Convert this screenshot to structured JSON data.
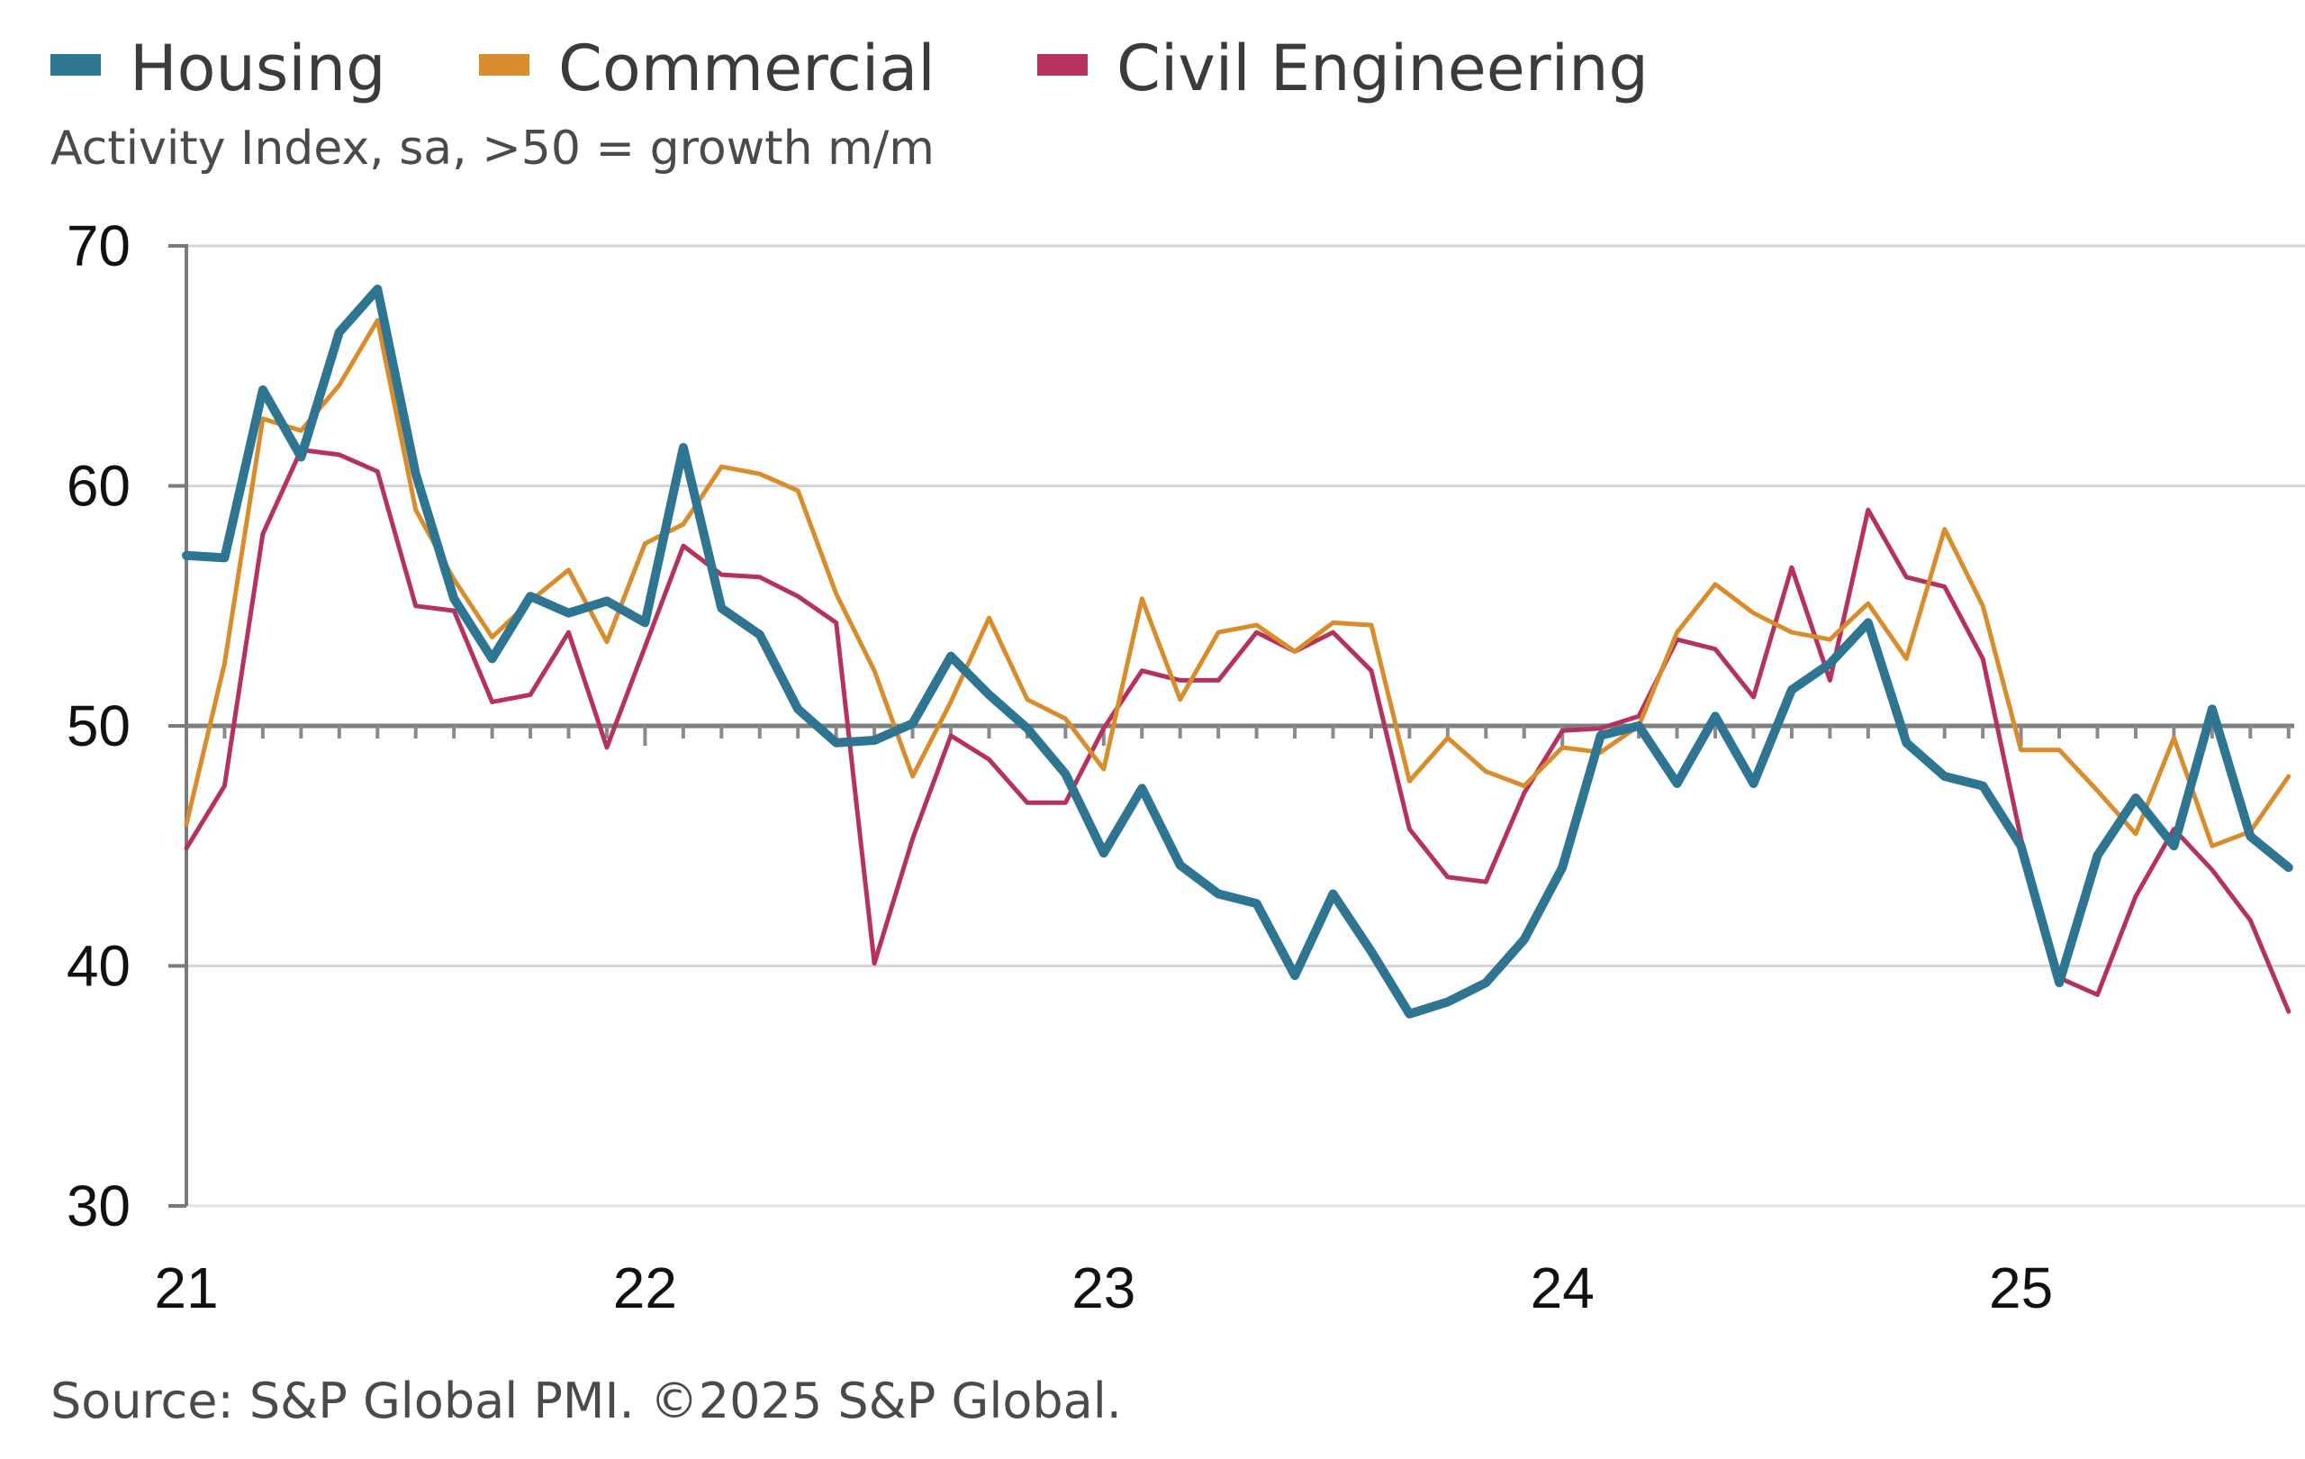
{
  "chart_data": {
    "type": "line",
    "title": "",
    "subtitle": "Activity Index, sa, >50 = growth m/m",
    "source": "Source: S&P Global PMI. ©2025 S&P Global.",
    "xlabel": "",
    "ylabel": "",
    "x_start": "2021-01",
    "frequency": "monthly",
    "x_tick_labels": [
      "21",
      "22",
      "23",
      "24",
      "25"
    ],
    "y_tick_labels": [
      "70",
      "60",
      "50",
      "40",
      "30"
    ],
    "ylim": [
      30,
      70
    ],
    "reference_line": 50,
    "grid": true,
    "legend_position": "top-left",
    "series": [
      {
        "name": "Housing",
        "color": "#2e7591",
        "values": [
          57.1,
          57.0,
          64.0,
          61.2,
          66.4,
          68.2,
          60.5,
          55.3,
          52.8,
          55.4,
          54.7,
          55.2,
          54.3,
          61.6,
          54.9,
          53.8,
          50.7,
          49.3,
          49.4,
          50.1,
          52.9,
          51.3,
          49.9,
          48.0,
          44.7,
          47.4,
          44.2,
          43.0,
          42.6,
          39.6,
          43.0,
          40.6,
          38.0,
          38.5,
          39.3,
          41.1,
          44.1,
          49.6,
          50.0,
          47.6,
          50.4,
          47.6,
          51.5,
          52.6,
          54.3,
          49.3,
          47.9,
          47.5,
          45.0,
          39.3,
          44.6,
          47.0,
          45.0,
          50.7,
          45.4,
          44.1
        ]
      },
      {
        "name": "Commercial",
        "color": "#d98c2b",
        "values": [
          45.9,
          52.6,
          62.8,
          62.3,
          64.2,
          66.9,
          59.0,
          56.1,
          53.7,
          55.2,
          56.5,
          53.5,
          57.6,
          58.4,
          60.8,
          60.5,
          59.8,
          55.5,
          52.3,
          47.9,
          51.0,
          54.5,
          51.1,
          50.3,
          48.2,
          55.3,
          51.1,
          53.9,
          54.2,
          53.1,
          54.3,
          54.2,
          47.7,
          49.5,
          48.1,
          47.5,
          49.1,
          48.9,
          50.0,
          53.9,
          55.9,
          54.7,
          53.9,
          53.6,
          55.1,
          52.8,
          58.2,
          55.0,
          49.0,
          49.0,
          47.3,
          45.5,
          49.5,
          45.0,
          45.6,
          47.9
        ]
      },
      {
        "name": "Civil Engineering",
        "color": "#b5325e",
        "values": [
          44.9,
          47.5,
          58.0,
          61.5,
          61.3,
          60.6,
          55.0,
          54.8,
          51.0,
          51.3,
          53.9,
          49.1,
          53.3,
          57.5,
          56.3,
          56.2,
          55.4,
          54.3,
          40.1,
          45.3,
          49.6,
          48.6,
          46.8,
          46.8,
          49.9,
          52.3,
          51.9,
          51.9,
          53.9,
          53.1,
          53.9,
          52.3,
          45.7,
          43.7,
          43.5,
          47.2,
          49.8,
          49.9,
          50.4,
          53.6,
          53.2,
          51.2,
          56.6,
          51.9,
          59.0,
          56.2,
          55.8,
          52.8,
          45.3,
          39.5,
          38.8,
          42.9,
          45.7,
          44.0,
          41.9,
          38.1
        ]
      }
    ]
  }
}
